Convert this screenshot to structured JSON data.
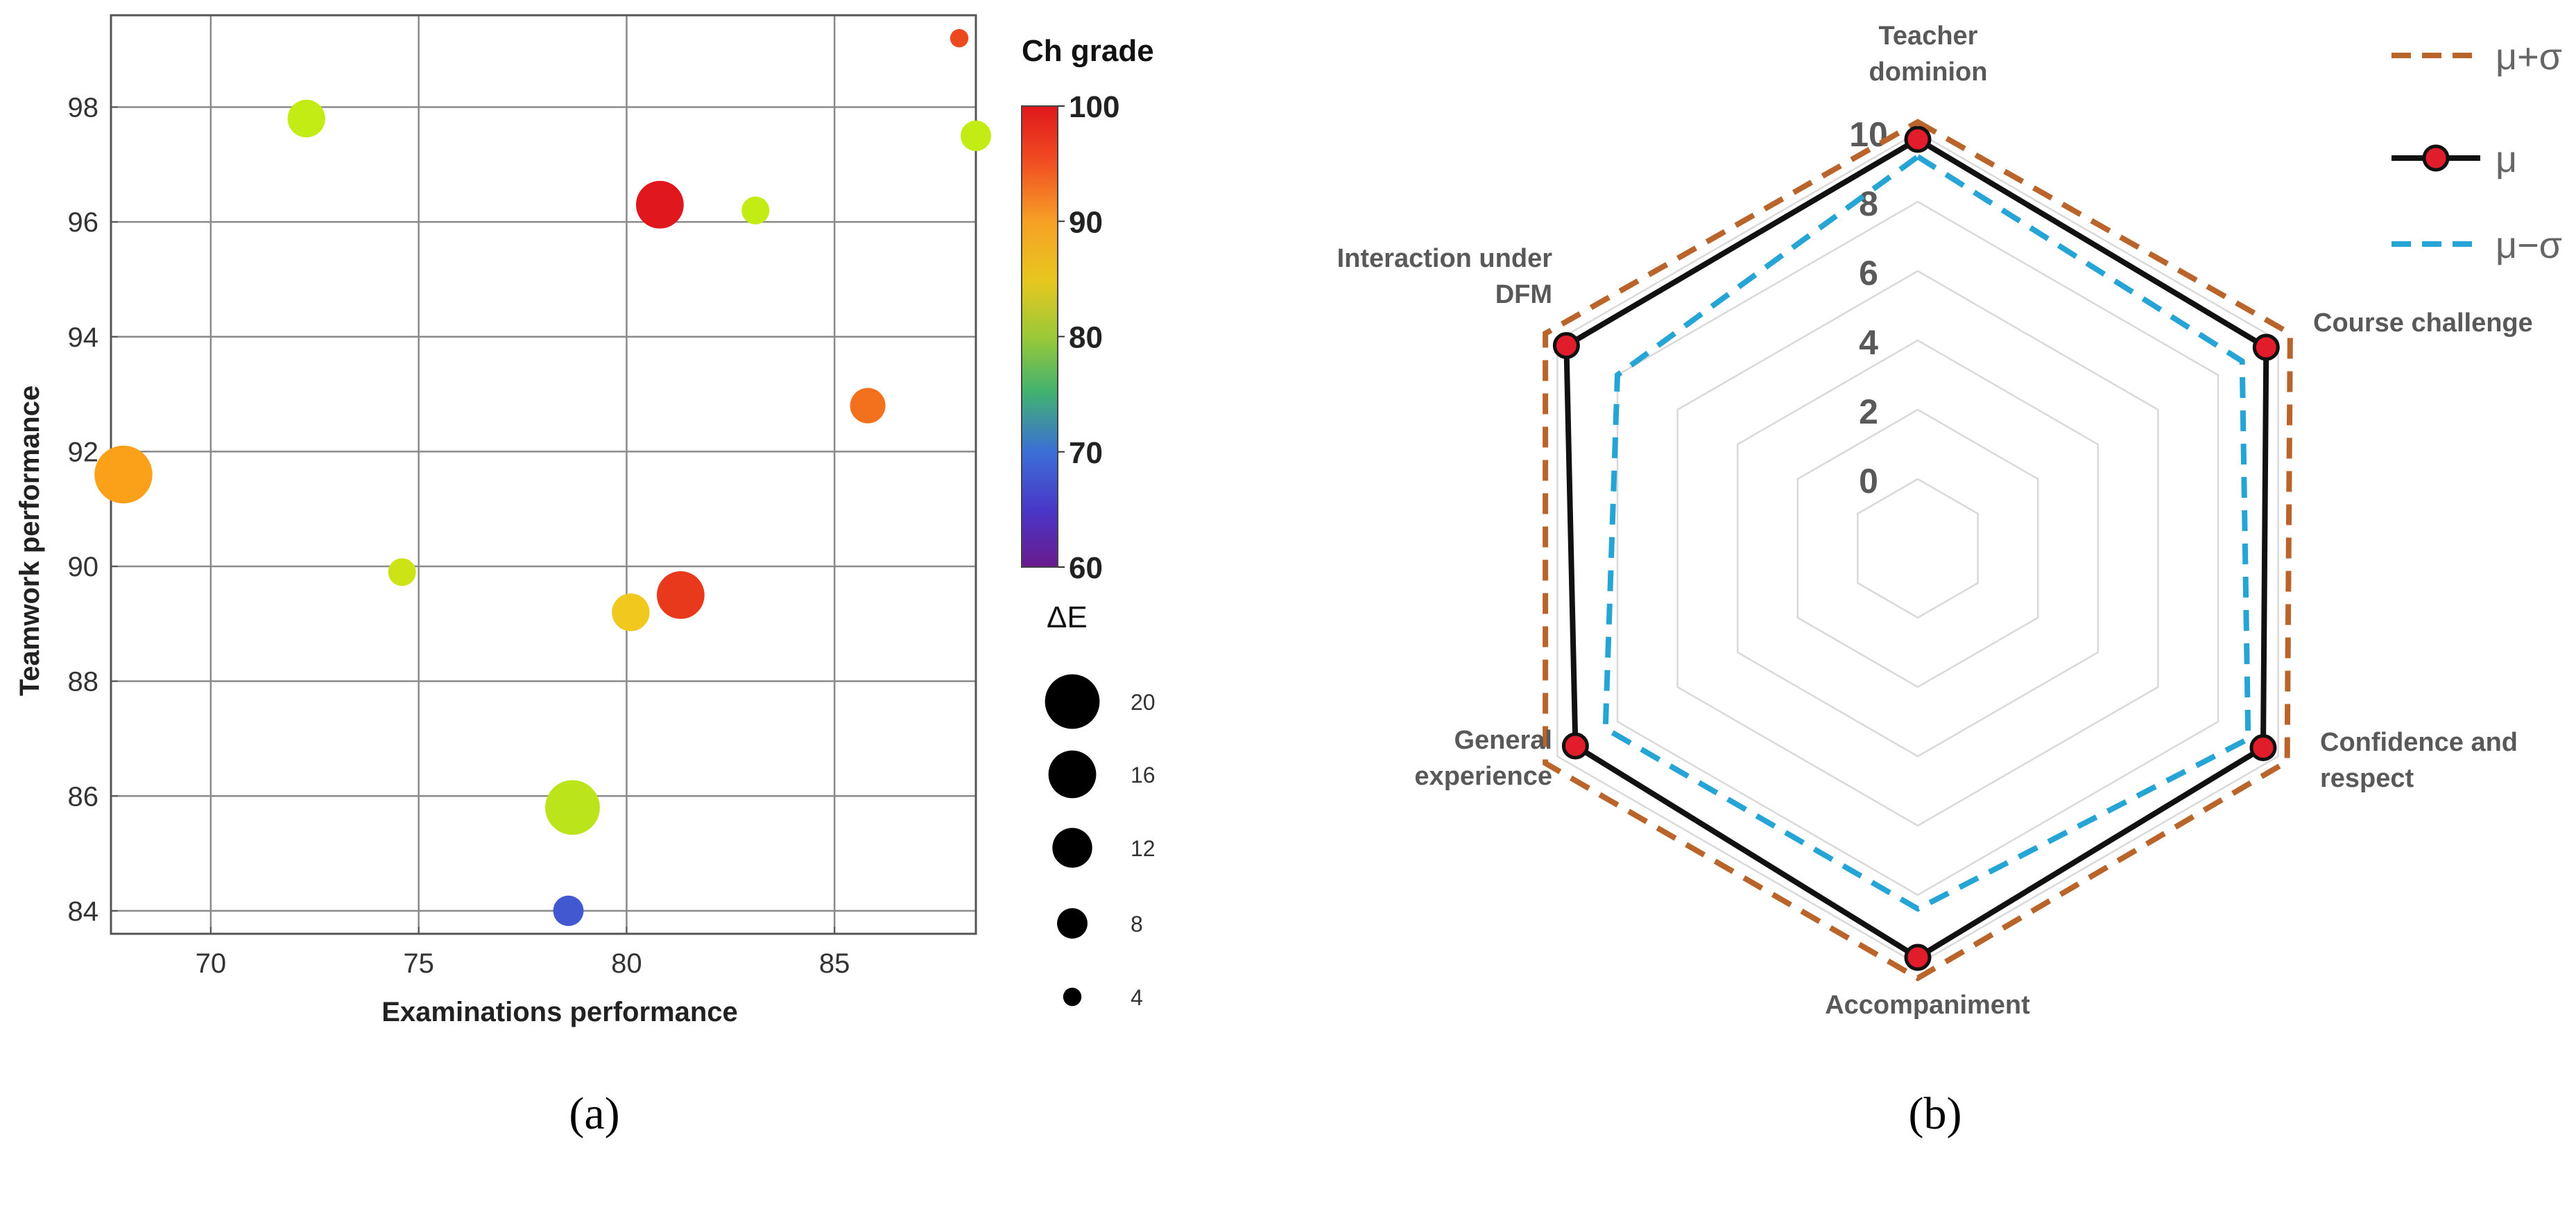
{
  "figure": {
    "label_a": "(a)",
    "label_b": "(b)"
  },
  "panel_a_chart_title": "",
  "chart_data": [
    {
      "type": "scatter",
      "title": "",
      "xlabel": "Examinations performance",
      "ylabel": "Teamwork performance",
      "xlim": [
        67.6,
        88.4
      ],
      "ylim": [
        83.6,
        99.6
      ],
      "xticks": [
        70,
        75,
        80,
        85
      ],
      "yticks": [
        84,
        86,
        88,
        90,
        92,
        94,
        96,
        98
      ],
      "grid": true,
      "colorbar": {
        "title": "Ch grade",
        "min": 60,
        "max": 100,
        "ticks": [
          100,
          90,
          80,
          70,
          60
        ]
      },
      "size_legend": {
        "title": "ΔE",
        "values": [
          20,
          16,
          12,
          8,
          4
        ]
      },
      "points": [
        {
          "x": 88.0,
          "y": 99.2,
          "grade": 97,
          "dE": 4
        },
        {
          "x": 72.3,
          "y": 97.8,
          "grade": 85,
          "dE": 11
        },
        {
          "x": 88.4,
          "y": 97.5,
          "grade": 85,
          "dE": 8
        },
        {
          "x": 80.8,
          "y": 96.3,
          "grade": 100,
          "dE": 16
        },
        {
          "x": 83.1,
          "y": 96.2,
          "grade": 85,
          "dE": 7
        },
        {
          "x": 85.8,
          "y": 92.8,
          "grade": 95,
          "dE": 10
        },
        {
          "x": 67.9,
          "y": 91.6,
          "grade": 93,
          "dE": 22
        },
        {
          "x": 74.6,
          "y": 89.9,
          "grade": 86,
          "dE": 7
        },
        {
          "x": 80.1,
          "y": 89.2,
          "grade": 90,
          "dE": 11
        },
        {
          "x": 81.3,
          "y": 89.5,
          "grade": 98,
          "dE": 16
        },
        {
          "x": 78.7,
          "y": 85.8,
          "grade": 84,
          "dE": 20
        },
        {
          "x": 78.6,
          "y": 84.0,
          "grade": 68,
          "dE": 8
        }
      ]
    },
    {
      "type": "radar",
      "title": "",
      "axes": [
        "Teacher dominion",
        "Course challenge",
        "Confidence and respect",
        "Accompaniment",
        "General experience",
        "Interaction under DFM"
      ],
      "axis_label_lines": [
        [
          "Teacher",
          "dominion"
        ],
        [
          "Course challenge"
        ],
        [
          "Confidence and",
          "respect"
        ],
        [
          "Accompaniment"
        ],
        [
          "General",
          "experience"
        ],
        [
          "Interaction under",
          "DFM"
        ]
      ],
      "rlim": [
        -2,
        10
      ],
      "rticks": [
        0,
        2,
        4,
        6,
        8,
        10
      ],
      "grid_levels": [
        0,
        2,
        4,
        6,
        8,
        10
      ],
      "legend": {
        "position": "top-right",
        "entries": [
          "μ+σ",
          "μ",
          "μ−σ"
        ]
      },
      "series": [
        {
          "name": "μ+σ",
          "values": [
            10.3,
            10.4,
            10.3,
            10.4,
            10.4,
            10.4
          ],
          "color": "#b8642a",
          "style": "dashed"
        },
        {
          "name": "μ",
          "values": [
            9.8,
            9.6,
            9.5,
            9.8,
            9.4,
            9.7
          ],
          "color": "#111111",
          "style": "solid",
          "marker_color": "#e11d2b"
        },
        {
          "name": "μ−σ",
          "values": [
            9.3,
            8.8,
            9.0,
            8.4,
            8.4,
            8.0
          ],
          "color": "#27a4d6",
          "style": "dashed"
        }
      ]
    }
  ]
}
